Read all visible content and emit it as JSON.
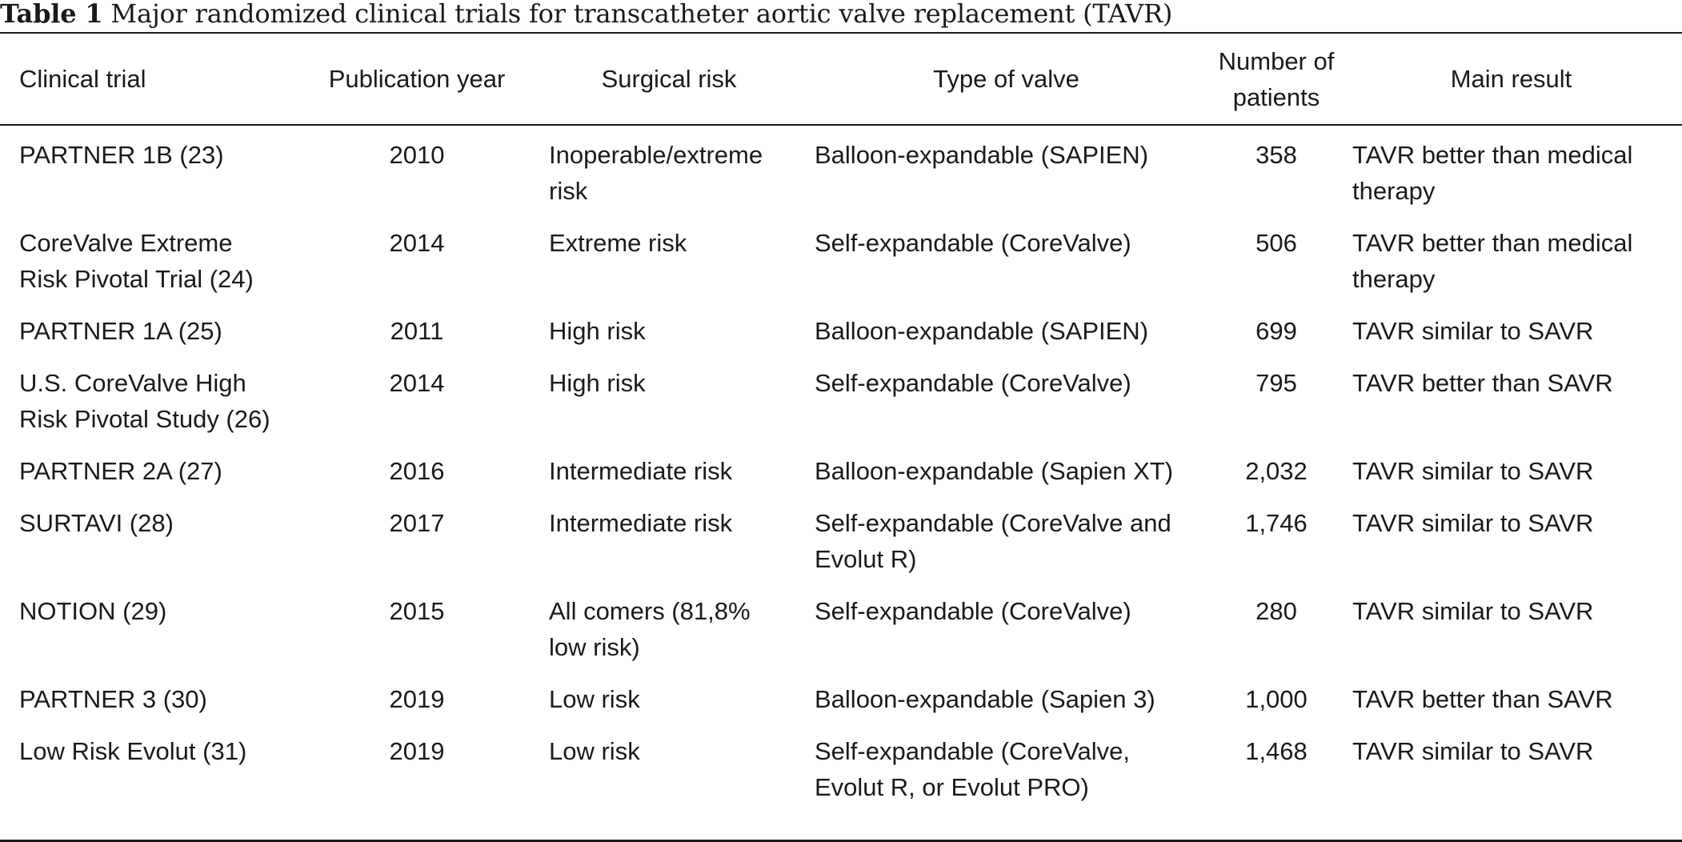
{
  "caption": {
    "label": "Table 1",
    "text": "Major randomized clinical trials for transcatheter aortic valve replacement (TAVR)"
  },
  "table": {
    "headers": {
      "trial": "Clinical trial",
      "year": "Publication year",
      "risk": "Surgical risk",
      "valve": "Type of valve",
      "patients_line1": "Number of",
      "patients_line2": "patients",
      "result": "Main result"
    },
    "rows": [
      {
        "trial": [
          "PARTNER 1B (23)"
        ],
        "year": "2010",
        "risk": [
          "Inoperable/extreme",
          "risk"
        ],
        "valve": [
          "Balloon-expandable (SAPIEN)"
        ],
        "patients": "358",
        "result": [
          "TAVR better than medical",
          "therapy"
        ]
      },
      {
        "trial": [
          "CoreValve Extreme",
          "Risk Pivotal Trial (24)"
        ],
        "year": "2014",
        "risk": [
          "Extreme risk"
        ],
        "valve": [
          "Self-expandable (CoreValve)"
        ],
        "patients": "506",
        "result": [
          "TAVR better than medical",
          "therapy"
        ]
      },
      {
        "trial": [
          "PARTNER 1A (25)"
        ],
        "year": "2011",
        "risk": [
          "High risk"
        ],
        "valve": [
          "Balloon-expandable (SAPIEN)"
        ],
        "patients": "699",
        "result": [
          "TAVR similar to SAVR"
        ]
      },
      {
        "trial": [
          "U.S. CoreValve High",
          "Risk Pivotal Study (26)"
        ],
        "year": "2014",
        "risk": [
          "High risk"
        ],
        "valve": [
          "Self-expandable (CoreValve)"
        ],
        "patients": "795",
        "result": [
          "TAVR better than SAVR"
        ]
      },
      {
        "trial": [
          "PARTNER 2A (27)"
        ],
        "year": "2016",
        "risk": [
          "Intermediate risk"
        ],
        "valve": [
          "Balloon-expandable (Sapien XT)"
        ],
        "patients": "2,032",
        "result": [
          "TAVR similar to SAVR"
        ]
      },
      {
        "trial": [
          "SURTAVI (28)"
        ],
        "year": "2017",
        "risk": [
          "Intermediate risk"
        ],
        "valve": [
          "Self-expandable (CoreValve and",
          "Evolut R)"
        ],
        "patients": "1,746",
        "result": [
          "TAVR similar to SAVR"
        ]
      },
      {
        "trial": [
          "NOTION (29)"
        ],
        "year": "2015",
        "risk": [
          "All comers (81,8%",
          "low risk)"
        ],
        "valve": [
          "Self-expandable (CoreValve)"
        ],
        "patients": "280",
        "result": [
          "TAVR similar to SAVR"
        ]
      },
      {
        "trial": [
          "PARTNER 3 (30)"
        ],
        "year": "2019",
        "risk": [
          "Low risk"
        ],
        "valve": [
          "Balloon-expandable (Sapien 3)"
        ],
        "patients": "1,000",
        "result": [
          "TAVR better than SAVR"
        ]
      },
      {
        "trial": [
          "Low Risk Evolut (31)"
        ],
        "year": "2019",
        "risk": [
          "Low risk"
        ],
        "valve": [
          "Self-expandable (CoreValve,",
          "Evolut R, or Evolut PRO)"
        ],
        "patients": "1,468",
        "result": [
          "TAVR similar to SAVR"
        ]
      }
    ]
  }
}
